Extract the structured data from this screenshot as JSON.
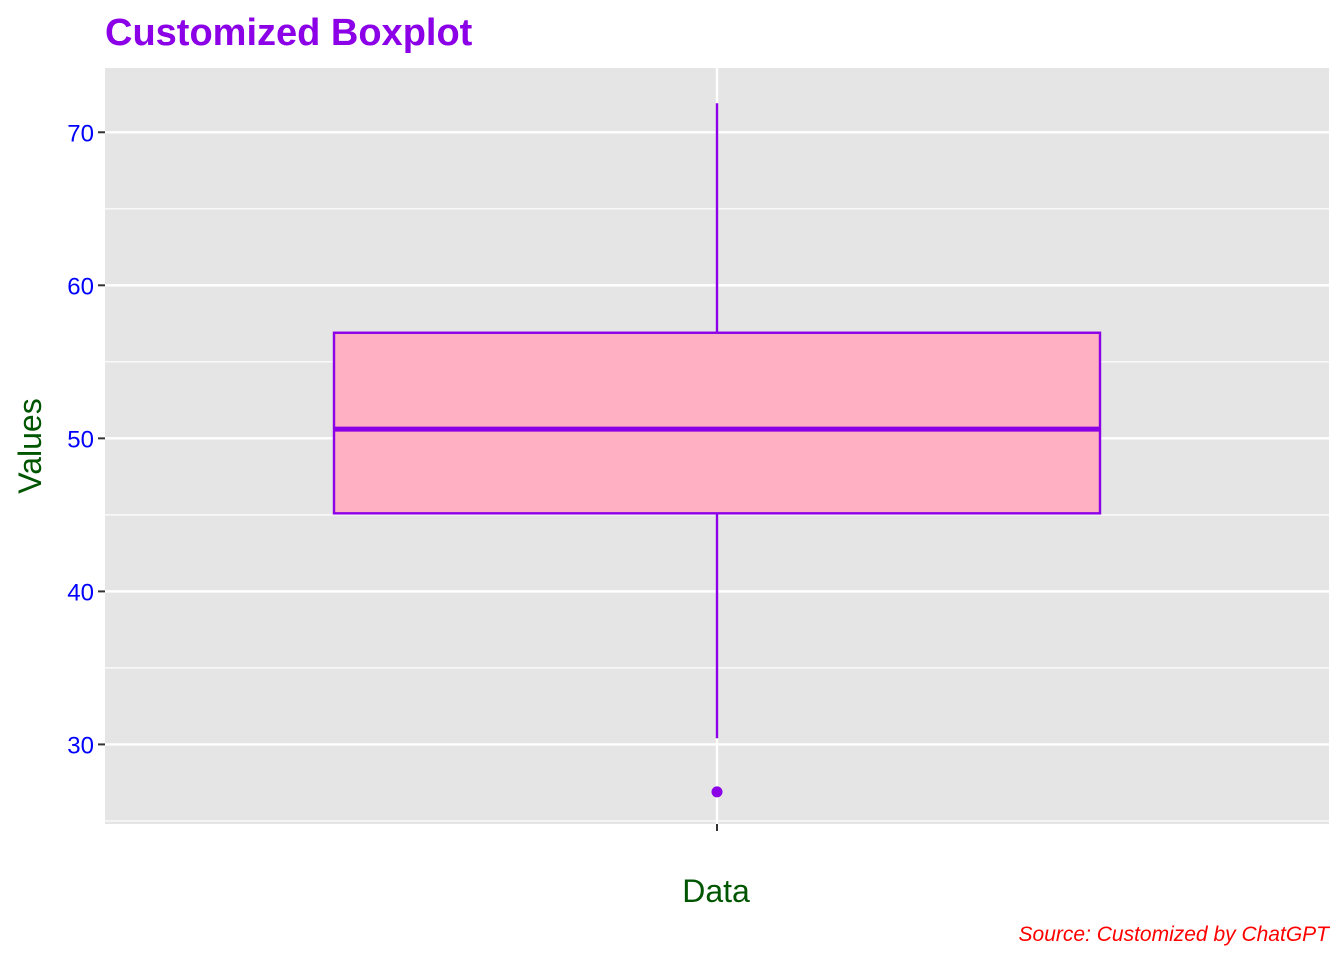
{
  "chart_data": {
    "type": "boxplot",
    "title": "Customized Boxplot",
    "xlabel": "Data",
    "ylabel": "Values",
    "caption": "Source: Customized by ChatGPT",
    "categories": [
      ""
    ],
    "ylim": [
      24.8,
      74.2
    ],
    "yticks": [
      30,
      40,
      50,
      60,
      70
    ],
    "yminor": [
      25,
      35,
      45,
      55,
      65
    ],
    "grid": true,
    "boxes": [
      {
        "category": "",
        "whisker_low": 30.4,
        "q1": 45.1,
        "median": 50.6,
        "q3": 56.9,
        "whisker_high": 71.9,
        "outliers": [
          26.9
        ]
      }
    ]
  },
  "colors": {
    "title": "#8B00E6",
    "tick_labels": "#0000FF",
    "axis_titles": "#005500",
    "caption": "#FF0000",
    "box_fill": "#FFB0C2",
    "box_stroke": "#8B00E6",
    "panel": "#E5E5E5",
    "grid": "#FFFFFF"
  }
}
